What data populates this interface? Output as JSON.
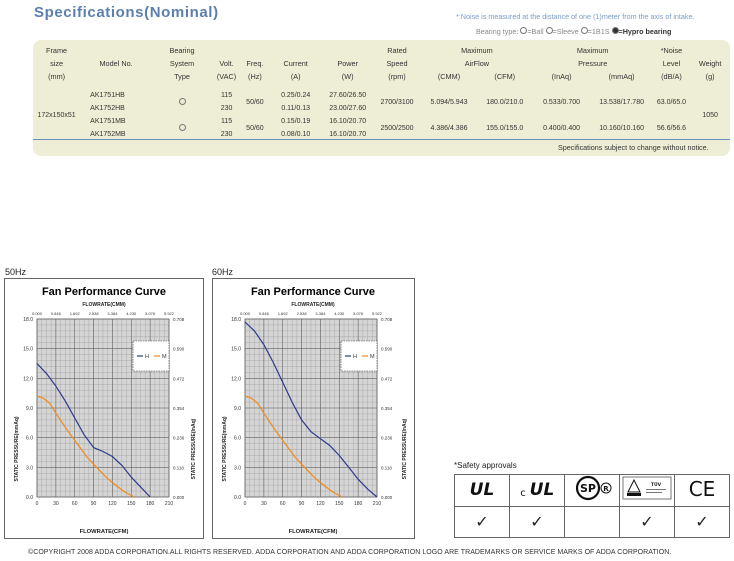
{
  "title": "Specifications(Nominal)",
  "noise_note": "*:Noise is measured at the distance of one (1)meter from the axis of intake.",
  "bearing_legend": {
    "prefix": "Bearing type:",
    "ball": "=Ball",
    "sleeve": "=Sleeve",
    "ones": "=1B1S",
    "hypro": "=Hypro bearing"
  },
  "spec_table": {
    "headers": {
      "frame_size": [
        "Frame",
        "size",
        "(mm)"
      ],
      "model": "Model No.",
      "bearing": [
        "Bearing",
        "System",
        "Type"
      ],
      "volt": [
        "Volt.",
        "(VAC)"
      ],
      "freq": [
        "Freq.",
        "(Hz)"
      ],
      "current": [
        "Current",
        "(A)"
      ],
      "power": [
        "Power",
        "(W)"
      ],
      "speed": [
        "Rated",
        "Speed",
        "(rpm)"
      ],
      "airflow": "Maximum",
      "airflow2": "AirFlow",
      "airflow_units": [
        "(CMM)",
        "(CFM)"
      ],
      "pressure": "Maximum",
      "pressure2": "Pressure",
      "pressure_units": [
        "(InAq)",
        "(mmAq)"
      ],
      "noise": [
        "*Noise",
        "Level",
        "(dB/A)"
      ],
      "weight": [
        "Weight",
        "(g)"
      ]
    },
    "frame_size": "172x150x51",
    "weight": "1050",
    "freq": "50/60",
    "groups": [
      {
        "models": [
          "AK1751HB",
          "AK1752HB"
        ],
        "bearing": "ball",
        "volts": [
          "115",
          "230"
        ],
        "currents": [
          "0.25/0.24",
          "0.11/0.13"
        ],
        "powers": [
          "27.60/26.50",
          "23.00/27.60"
        ],
        "speed": "2700/3100",
        "cmm": "5.094/5.943",
        "cfm": "180.0/210.0",
        "inaq": "0.533/0.700",
        "mmaq": "13.538/17.780",
        "noise": "63.0/65.0"
      },
      {
        "models": [
          "AK1751MB",
          "AK1752MB"
        ],
        "bearing": "ball",
        "volts": [
          "115",
          "230"
        ],
        "currents": [
          "0.15/0.19",
          "0.08/0.10"
        ],
        "powers": [
          "16.10/20.70",
          "16.10/20.70"
        ],
        "speed": "2500/2500",
        "cmm": "4.386/4.386",
        "cfm": "155.0/155.0",
        "inaq": "0.400/0.400",
        "mmaq": "10.160/10.160",
        "noise": "56.6/56.6"
      }
    ],
    "footer": "Specifications subject to change without notice."
  },
  "chart_data": [
    {
      "type": "line",
      "label": "50Hz",
      "title": "Fan Performance Curve",
      "xlabel": "FLOWRATE(CFM)",
      "x2label": "FLOWRATE(CMM)",
      "ylabel": "STATIC PRESSURE(mmAq)",
      "y2label": "STATIC PRESSURE(InAq)",
      "xlim": [
        0,
        210
      ],
      "ylim": [
        0,
        18
      ],
      "x_ticks": [
        "0",
        "30",
        "60",
        "90",
        "120",
        "150",
        "180",
        "210"
      ],
      "x2_ticks": [
        "0.000",
        "0.846",
        "1.692",
        "2.538",
        "3.384",
        "4.230",
        "5.076",
        "5.922"
      ],
      "y_ticks": [
        "0.0",
        "3.0",
        "6.0",
        "9.0",
        "12.0",
        "15.0",
        "18.0"
      ],
      "y2_ticks": [
        "0.000",
        "0.118",
        "0.236",
        "0.354",
        "0.472",
        "0.590",
        "0.708"
      ],
      "legend_position": "top-right",
      "series": [
        {
          "name": "H",
          "color": "#2c3a8c",
          "x": [
            0,
            15,
            30,
            45,
            60,
            75,
            90,
            105,
            120,
            135,
            150,
            165,
            180
          ],
          "y": [
            13.5,
            12.5,
            11.2,
            9.7,
            8.0,
            6.3,
            5.0,
            4.6,
            4.1,
            3.2,
            2.0,
            1.0,
            0.0
          ]
        },
        {
          "name": "M",
          "color": "#f08a1c",
          "x": [
            0,
            10,
            20,
            35,
            50,
            65,
            80,
            95,
            110,
            125,
            140,
            155
          ],
          "y": [
            10.2,
            10.0,
            9.5,
            8.0,
            6.6,
            5.3,
            4.0,
            3.0,
            2.0,
            1.2,
            0.5,
            0.0
          ]
        }
      ]
    },
    {
      "type": "line",
      "label": "60Hz",
      "title": "Fan Performance Curve",
      "xlabel": "FLOWRATE(CFM)",
      "x2label": "FLOWRATE(CMM)",
      "ylabel": "STATIC PRESSURE(mmAq)",
      "y2label": "STATIC PRESSURE(InAq)",
      "xlim": [
        0,
        210
      ],
      "ylim": [
        0,
        18
      ],
      "x_ticks": [
        "0",
        "30",
        "60",
        "90",
        "120",
        "150",
        "180",
        "210"
      ],
      "x2_ticks": [
        "0.000",
        "0.846",
        "1.692",
        "2.538",
        "3.384",
        "4.230",
        "5.076",
        "5.922"
      ],
      "y_ticks": [
        "0.0",
        "3.0",
        "6.0",
        "9.0",
        "12.0",
        "15.0",
        "18.0"
      ],
      "y2_ticks": [
        "0.000",
        "0.118",
        "0.236",
        "0.354",
        "0.472",
        "0.590",
        "0.708"
      ],
      "legend_position": "top-right",
      "series": [
        {
          "name": "H",
          "color": "#2c3a8c",
          "x": [
            0,
            15,
            30,
            45,
            60,
            75,
            90,
            105,
            120,
            135,
            150,
            165,
            180,
            195,
            210
          ],
          "y": [
            17.7,
            16.8,
            15.4,
            13.6,
            11.6,
            9.6,
            7.8,
            6.6,
            5.9,
            5.2,
            4.2,
            3.0,
            1.8,
            0.8,
            0.0
          ]
        },
        {
          "name": "M",
          "color": "#f08a1c",
          "x": [
            0,
            10,
            20,
            35,
            50,
            65,
            80,
            95,
            110,
            125,
            140,
            155
          ],
          "y": [
            10.2,
            10.0,
            9.5,
            8.0,
            6.6,
            5.3,
            4.0,
            3.0,
            2.0,
            1.2,
            0.5,
            0.0
          ]
        }
      ]
    }
  ],
  "safety": {
    "title": "*Safety approvals",
    "marks": [
      "UL",
      "cUL",
      "CSA",
      "TUV",
      "CE"
    ],
    "ul_logo": "UL",
    "cul_c": "c",
    "cul_logo": "UL",
    "csa_logo": "SP",
    "tuv_logo": "TÜV",
    "ce_logo": "CE",
    "checks": [
      true,
      true,
      false,
      true,
      true
    ],
    "check_glyph": "✓"
  },
  "copyright": "©COPYRIGHT 2008 ADDA CORPORATION.ALL RIGHTS RESERVED. ADDA CORPORATION AND ADDA  CORPORATION LOGO ARE TRADEMARKS OR SERVICE MARKS OF ADDA CORPORATION."
}
